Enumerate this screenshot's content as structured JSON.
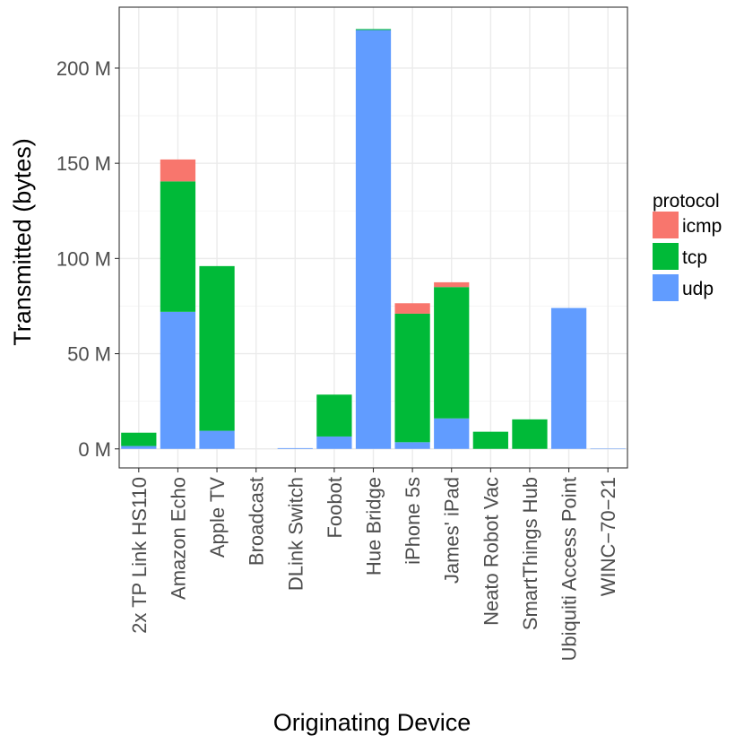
{
  "chart_data": {
    "type": "bar",
    "stacked": true,
    "xlabel": "Originating Device",
    "ylabel": "Transmitted (bytes)",
    "ylim": [
      -10,
      232
    ],
    "yticks": [
      0,
      50,
      100,
      150,
      200
    ],
    "ytick_labels": [
      "0 M",
      "50 M",
      "100 M",
      "150 M",
      "200 M"
    ],
    "grid": true,
    "legend": {
      "title": "protocol",
      "position": "right"
    },
    "categories": [
      "2x TP Link HS110",
      "Amazon Echo",
      "Apple TV",
      "Broadcast",
      "DLink Switch",
      "Foobot",
      "Hue Bridge",
      "iPhone 5s",
      "James' iPad",
      "Neato Robot Vac",
      "SmartThings Hub",
      "Ubiquiti Access Point",
      "WINC−70−21"
    ],
    "series": [
      {
        "name": "udp",
        "color": "#619CFF",
        "values": [
          1.5,
          72,
          9.5,
          0,
          0.4,
          6.5,
          220,
          3.5,
          16,
          0,
          0,
          74,
          0.1
        ]
      },
      {
        "name": "tcp",
        "color": "#00BA38",
        "values": [
          7,
          68.5,
          86.5,
          0,
          0,
          22,
          0.5,
          67.5,
          69,
          9,
          15.5,
          0,
          0
        ]
      },
      {
        "name": "icmp",
        "color": "#F8766D",
        "values": [
          0,
          11.5,
          0,
          0,
          0,
          0,
          0,
          5.5,
          2.5,
          0,
          0,
          0,
          0
        ]
      }
    ],
    "legend_order": [
      "icmp",
      "tcp",
      "udp"
    ]
  }
}
